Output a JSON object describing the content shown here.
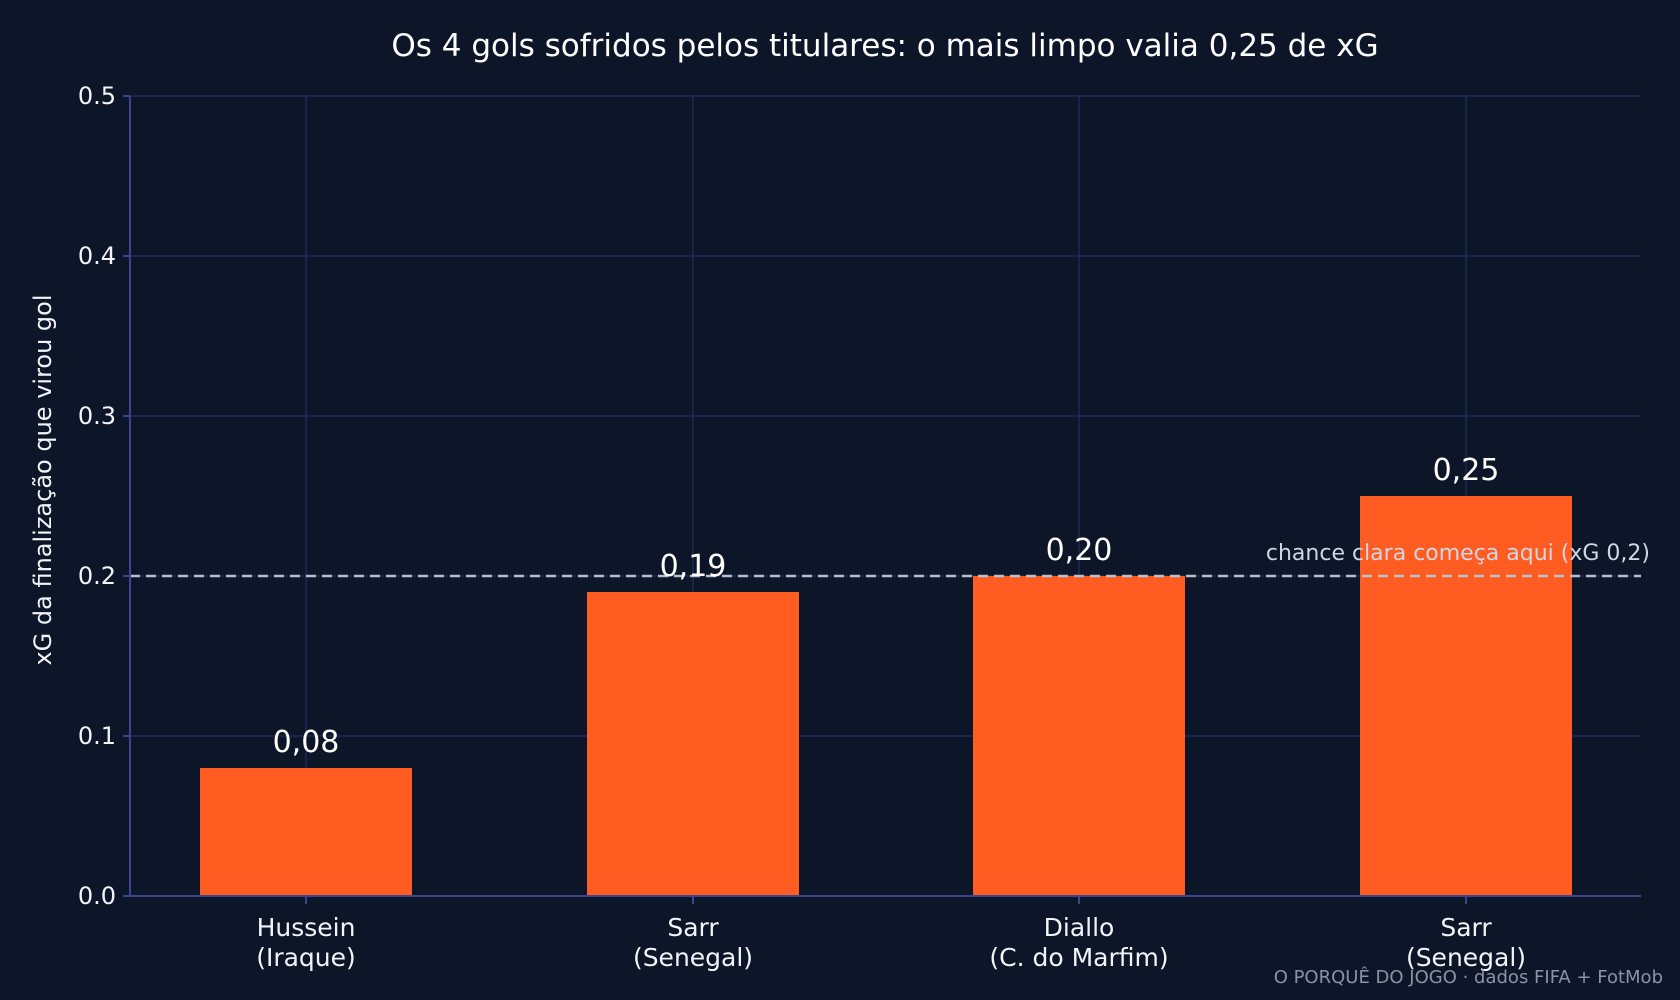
{
  "chart_data": {
    "type": "bar",
    "title": "Os 4 gols sofridos pelos titulares: o mais limpo valia 0,25 de xG",
    "xlabel": "",
    "ylabel": "xG da finalização que virou gol",
    "categories": [
      [
        "Hussein",
        "(Iraque)"
      ],
      [
        "Sarr",
        "(Senegal)"
      ],
      [
        "Diallo",
        "(C. do Marfim)"
      ],
      [
        "Sarr",
        "(Senegal)"
      ]
    ],
    "values": [
      0.08,
      0.19,
      0.2,
      0.25
    ],
    "value_labels": [
      "0,08",
      "0,19",
      "0,20",
      "0,25"
    ],
    "ylim": [
      0,
      0.5
    ],
    "yticks": [
      0.0,
      0.1,
      0.2,
      0.3,
      0.4,
      0.5
    ],
    "ytick_labels": [
      "0.0",
      "0.1",
      "0.2",
      "0.3",
      "0.4",
      "0.5"
    ],
    "grid": true,
    "reference_line": {
      "y": 0.2,
      "label": "chance clara começa aqui (xG 0,2)"
    },
    "credit": "O PORQUÊ DO JOGO · dados FIFA + FotMob",
    "colors": {
      "background": "#0c1628",
      "bar": "#ff5c22",
      "grid": "#1c2a55",
      "axis": "#3a4690",
      "reference_line": "#b8bfd0",
      "text": "#f2f4f8"
    }
  }
}
